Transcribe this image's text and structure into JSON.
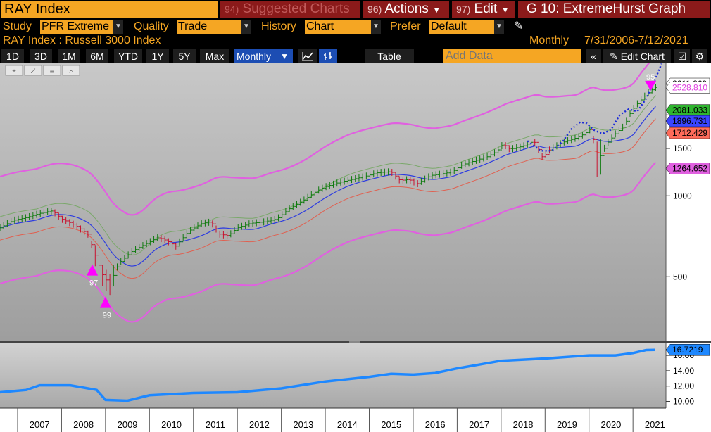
{
  "header": {
    "ticker": "RAY Index",
    "suggested": {
      "num": "94)",
      "label": "Suggested Charts"
    },
    "actions": {
      "num": "96)",
      "label": "Actions"
    },
    "edit": {
      "num": "97)",
      "label": "Edit"
    },
    "title": "G 10: ExtremeHurst Graph"
  },
  "controls": {
    "study_label": "Study",
    "study_value": "PFR Extreme",
    "quality_label": "Quality",
    "quality_value": "Trade",
    "history_label": "History",
    "history_value": "Chart",
    "prefer_label": "Prefer",
    "prefer_value": "Default"
  },
  "subheader": {
    "security": "RAY Index : Russell 3000 Index",
    "period": "Monthly",
    "range": "7/31/2006-7/12/2021"
  },
  "toolbar": {
    "periods": [
      "1D",
      "3D",
      "1M",
      "6M",
      "YTD",
      "1Y",
      "5Y",
      "Max"
    ],
    "frequency": "Monthly",
    "table": "Table",
    "add_data_placeholder": "Add Data",
    "edit_chart": "Edit Chart"
  },
  "colors": {
    "accent": "#f5a623",
    "band_outer": "#e060e0",
    "band_mid": "#7aa86a",
    "band_blue": "#2d3ce0",
    "band_red": "#e06050",
    "forecast": "#1a2ad8",
    "hurst": "#1e88ff"
  },
  "chart_data": [
    {
      "type": "line",
      "scale": "log",
      "ylim": [
        300,
        3000
      ],
      "yticks": [
        500,
        1000,
        1500,
        2000
      ],
      "price_labels": [
        {
          "value": "2611.269",
          "color": "#000000",
          "bg": "#ffffff"
        },
        {
          "value": "2528.810",
          "color": "#e040e0",
          "bg": "#ffffff"
        },
        {
          "value": "2081.033",
          "color": "#000000",
          "bg": "#2fb52f"
        },
        {
          "value": "1896.731",
          "color": "#000000",
          "bg": "#3a45ff"
        },
        {
          "value": "1712.429",
          "color": "#000000",
          "bg": "#ff6b5a"
        },
        {
          "value": "1264.652",
          "color": "#000000",
          "bg": "#e060e0"
        }
      ],
      "signals": [
        {
          "label": "97",
          "x": 2008.7,
          "type": "up"
        },
        {
          "label": "99",
          "x": 2009.0,
          "type": "up"
        },
        {
          "label": "95",
          "x": 2021.4,
          "type": "down"
        }
      ],
      "price": [
        [
          2006.6,
          760
        ],
        [
          2006.9,
          810
        ],
        [
          2007.2,
          830
        ],
        [
          2007.5,
          860
        ],
        [
          2007.8,
          880
        ],
        [
          2008.0,
          820
        ],
        [
          2008.3,
          780
        ],
        [
          2008.6,
          720
        ],
        [
          2008.8,
          580
        ],
        [
          2008.95,
          500
        ],
        [
          2009.1,
          470
        ],
        [
          2009.3,
          560
        ],
        [
          2009.6,
          620
        ],
        [
          2009.9,
          660
        ],
        [
          2010.2,
          700
        ],
        [
          2010.4,
          680
        ],
        [
          2010.6,
          650
        ],
        [
          2010.9,
          740
        ],
        [
          2011.2,
          790
        ],
        [
          2011.4,
          800
        ],
        [
          2011.6,
          720
        ],
        [
          2011.8,
          710
        ],
        [
          2012.0,
          760
        ],
        [
          2012.3,
          790
        ],
        [
          2012.6,
          800
        ],
        [
          2012.9,
          820
        ],
        [
          2013.2,
          900
        ],
        [
          2013.5,
          960
        ],
        [
          2013.8,
          1040
        ],
        [
          2014.0,
          1080
        ],
        [
          2014.3,
          1120
        ],
        [
          2014.6,
          1150
        ],
        [
          2014.9,
          1180
        ],
        [
          2015.2,
          1220
        ],
        [
          2015.5,
          1230
        ],
        [
          2015.7,
          1140
        ],
        [
          2015.9,
          1150
        ],
        [
          2016.1,
          1110
        ],
        [
          2016.4,
          1190
        ],
        [
          2016.7,
          1210
        ],
        [
          2016.9,
          1230
        ],
        [
          2017.1,
          1300
        ],
        [
          2017.4,
          1350
        ],
        [
          2017.7,
          1400
        ],
        [
          2017.9,
          1460
        ],
        [
          2018.05,
          1560
        ],
        [
          2018.2,
          1490
        ],
        [
          2018.5,
          1530
        ],
        [
          2018.75,
          1600
        ],
        [
          2018.95,
          1380
        ],
        [
          2019.1,
          1480
        ],
        [
          2019.4,
          1580
        ],
        [
          2019.7,
          1640
        ],
        [
          2019.9,
          1700
        ],
        [
          2020.05,
          1780
        ],
        [
          2020.2,
          1340
        ],
        [
          2020.4,
          1560
        ],
        [
          2020.6,
          1700
        ],
        [
          2020.8,
          1820
        ],
        [
          2020.95,
          2050
        ],
        [
          2021.1,
          2200
        ],
        [
          2021.3,
          2380
        ],
        [
          2021.5,
          2530
        ]
      ],
      "forecast": [
        [
          2018.6,
          1600
        ],
        [
          2018.9,
          1470
        ],
        [
          2019.15,
          1470
        ],
        [
          2019.4,
          1590
        ],
        [
          2019.6,
          1770
        ],
        [
          2019.8,
          1880
        ],
        [
          2019.95,
          1860
        ],
        [
          2020.1,
          1760
        ],
        [
          2020.3,
          1700
        ],
        [
          2020.5,
          1760
        ],
        [
          2020.7,
          2000
        ],
        [
          2020.9,
          2100
        ],
        [
          2021.1,
          2060
        ],
        [
          2021.3,
          2300
        ],
        [
          2021.5,
          2700
        ],
        [
          2021.65,
          3100
        ]
      ]
    },
    {
      "type": "line",
      "ylim": [
        9.5,
        17.2
      ],
      "yticks": [
        10.0,
        12.0,
        14.0,
        16.0
      ],
      "last_label": "16.7219",
      "values": [
        [
          2006.6,
          11.2
        ],
        [
          2007.2,
          11.5
        ],
        [
          2007.5,
          12.1
        ],
        [
          2008.2,
          12.1
        ],
        [
          2008.8,
          11.5
        ],
        [
          2009.0,
          10.2
        ],
        [
          2009.5,
          10.1
        ],
        [
          2010.0,
          10.8
        ],
        [
          2011.0,
          11.1
        ],
        [
          2012.0,
          11.2
        ],
        [
          2013.0,
          11.7
        ],
        [
          2014.0,
          12.6
        ],
        [
          2015.0,
          13.2
        ],
        [
          2015.5,
          13.6
        ],
        [
          2016.0,
          13.5
        ],
        [
          2016.5,
          13.7
        ],
        [
          2017.0,
          14.3
        ],
        [
          2017.5,
          14.8
        ],
        [
          2018.0,
          15.3
        ],
        [
          2019.0,
          15.6
        ],
        [
          2020.0,
          16.0
        ],
        [
          2020.6,
          16.0
        ],
        [
          2021.0,
          16.3
        ],
        [
          2021.3,
          16.7
        ],
        [
          2021.5,
          16.72
        ]
      ]
    }
  ],
  "xaxis": {
    "years": [
      "2007",
      "2008",
      "2009",
      "2010",
      "2011",
      "2012",
      "2013",
      "2014",
      "2015",
      "2016",
      "2017",
      "2018",
      "2019",
      "2020",
      "2021"
    ]
  }
}
